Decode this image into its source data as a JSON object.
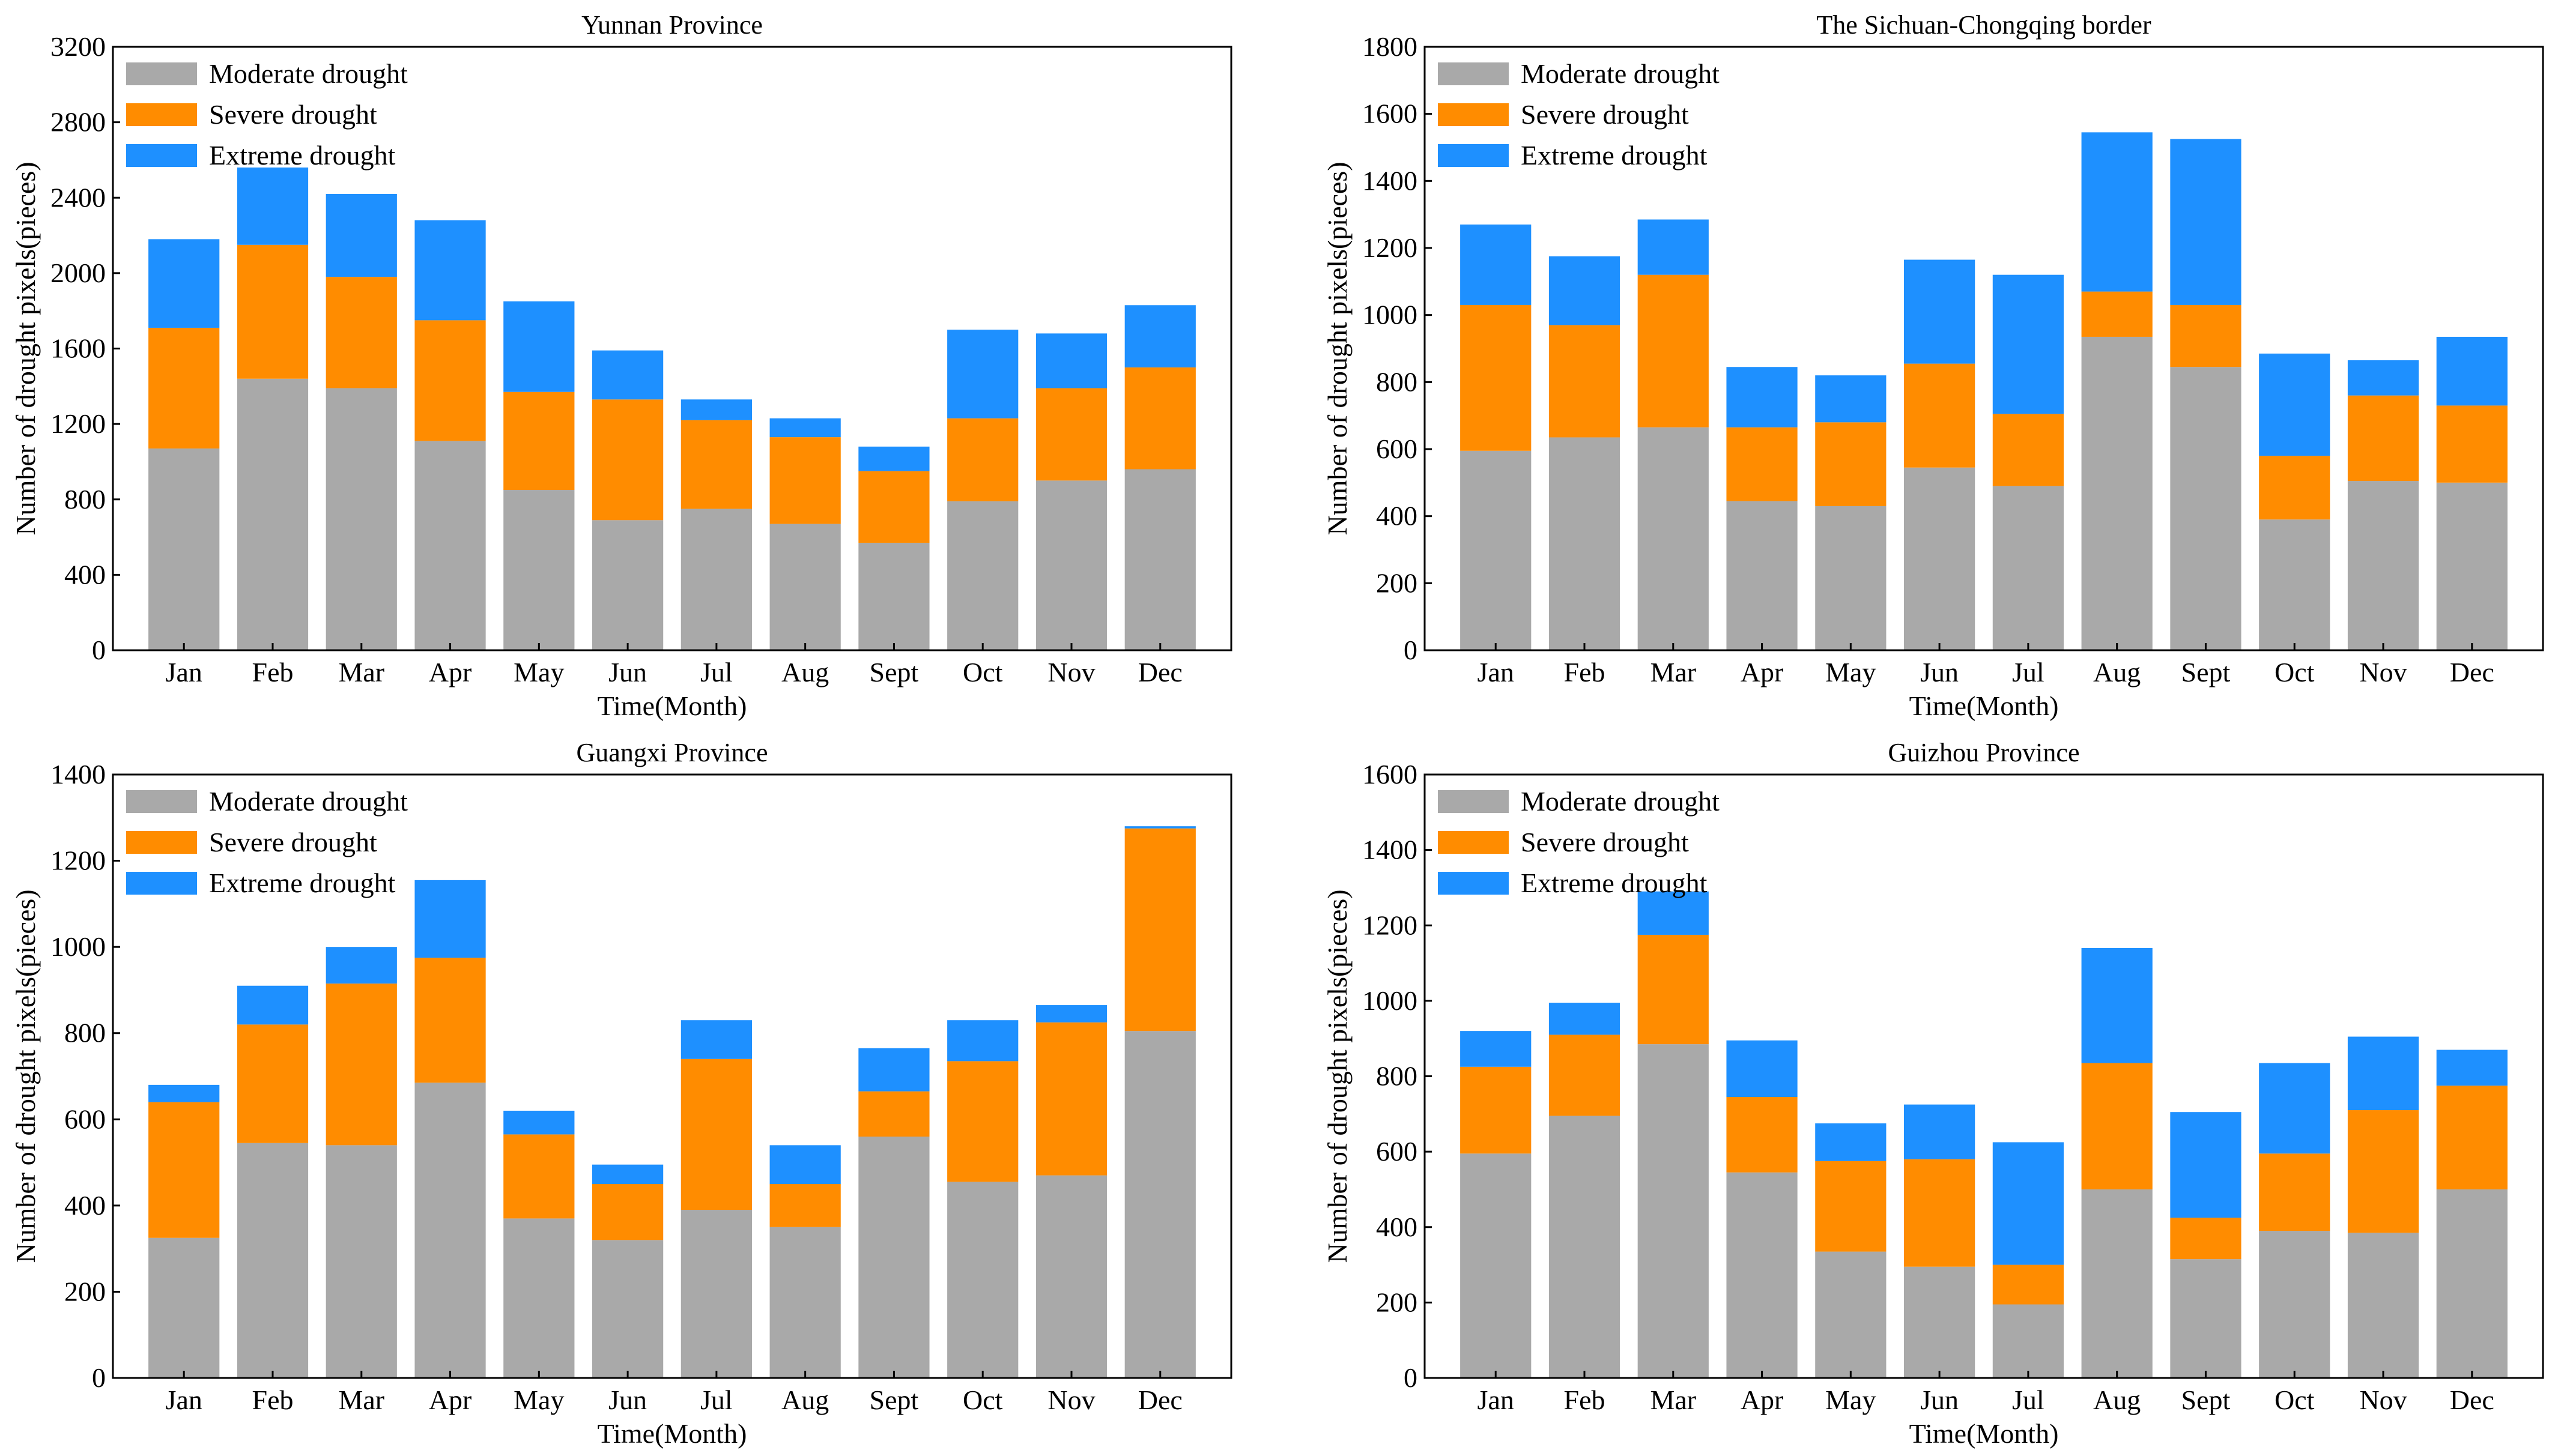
{
  "colors": {
    "moderate": "#a9a9a9",
    "severe": "#ff8c00",
    "extreme": "#1e90ff"
  },
  "chart_data": [
    {
      "type": "bar",
      "stacked": true,
      "title": "Yunnan Province",
      "xlabel": "Time(Month)",
      "ylabel": "Number of drought pixels(pieces)",
      "ylim": [
        0,
        3200
      ],
      "yticks": [
        0,
        400,
        800,
        1200,
        1600,
        2000,
        2400,
        2800,
        3200
      ],
      "categories": [
        "Jan",
        "Feb",
        "Mar",
        "Apr",
        "May",
        "Jun",
        "Jul",
        "Aug",
        "Sept",
        "Oct",
        "Nov",
        "Dec"
      ],
      "legend_position": "top-left",
      "series": [
        {
          "name": "Moderate drought",
          "values": [
            1070,
            1440,
            1390,
            1110,
            850,
            690,
            750,
            670,
            570,
            790,
            900,
            960
          ]
        },
        {
          "name": "Severe drought",
          "values": [
            640,
            710,
            590,
            640,
            520,
            640,
            470,
            460,
            380,
            440,
            490,
            540
          ]
        },
        {
          "name": "Extreme drought",
          "values": [
            470,
            410,
            440,
            530,
            480,
            260,
            110,
            100,
            130,
            470,
            290,
            330
          ]
        }
      ]
    },
    {
      "type": "bar",
      "stacked": true,
      "title": "The Sichuan-Chongqing border",
      "xlabel": "Time(Month)",
      "ylabel": "Number of drought pixels(pieces)",
      "ylim": [
        0,
        1800
      ],
      "yticks": [
        0,
        200,
        400,
        600,
        800,
        1000,
        1200,
        1400,
        1600,
        1800
      ],
      "categories": [
        "Jan",
        "Feb",
        "Mar",
        "Apr",
        "May",
        "Jun",
        "Jul",
        "Aug",
        "Sept",
        "Oct",
        "Nov",
        "Dec"
      ],
      "legend_position": "top-left",
      "series": [
        {
          "name": "Moderate drought",
          "values": [
            595,
            635,
            665,
            445,
            430,
            545,
            490,
            935,
            845,
            390,
            505,
            500
          ]
        },
        {
          "name": "Severe drought",
          "values": [
            435,
            335,
            455,
            220,
            250,
            310,
            215,
            135,
            185,
            190,
            255,
            230
          ]
        },
        {
          "name": "Extreme drought",
          "values": [
            240,
            205,
            165,
            180,
            140,
            310,
            415,
            475,
            495,
            305,
            105,
            205
          ]
        }
      ]
    },
    {
      "type": "bar",
      "stacked": true,
      "title": "Guangxi Province",
      "xlabel": "Time(Month)",
      "ylabel": "Number of drought pixels(pieces)",
      "ylim": [
        0,
        1400
      ],
      "yticks": [
        0,
        200,
        400,
        600,
        800,
        1000,
        1200,
        1400
      ],
      "categories": [
        "Jan",
        "Feb",
        "Mar",
        "Apr",
        "May",
        "Jun",
        "Jul",
        "Aug",
        "Sept",
        "Oct",
        "Nov",
        "Dec"
      ],
      "legend_position": "top-left",
      "series": [
        {
          "name": "Moderate drought",
          "values": [
            325,
            545,
            540,
            685,
            370,
            320,
            390,
            350,
            560,
            455,
            470,
            805
          ]
        },
        {
          "name": "Severe drought",
          "values": [
            315,
            275,
            375,
            290,
            195,
            130,
            350,
            100,
            105,
            280,
            355,
            470
          ]
        },
        {
          "name": "Extreme drought",
          "values": [
            40,
            90,
            85,
            180,
            55,
            45,
            90,
            90,
            100,
            95,
            40,
            5
          ]
        }
      ]
    },
    {
      "type": "bar",
      "stacked": true,
      "title": "Guizhou Province",
      "xlabel": "Time(Month)",
      "ylabel": "Number of drought pixels(pieces)",
      "ylim": [
        0,
        1600
      ],
      "yticks": [
        0,
        200,
        400,
        600,
        800,
        1000,
        1200,
        1400,
        1600
      ],
      "categories": [
        "Jan",
        "Feb",
        "Mar",
        "Apr",
        "May",
        "Jun",
        "Jul",
        "Aug",
        "Sept",
        "Oct",
        "Nov",
        "Dec"
      ],
      "legend_position": "top-left",
      "series": [
        {
          "name": "Moderate drought",
          "values": [
            595,
            695,
            885,
            545,
            335,
            295,
            195,
            500,
            315,
            390,
            385,
            500
          ]
        },
        {
          "name": "Severe drought",
          "values": [
            230,
            215,
            290,
            200,
            240,
            285,
            105,
            335,
            110,
            205,
            325,
            275
          ]
        },
        {
          "name": "Extreme drought",
          "values": [
            95,
            85,
            115,
            150,
            100,
            145,
            325,
            305,
            280,
            240,
            195,
            95
          ]
        }
      ]
    }
  ]
}
